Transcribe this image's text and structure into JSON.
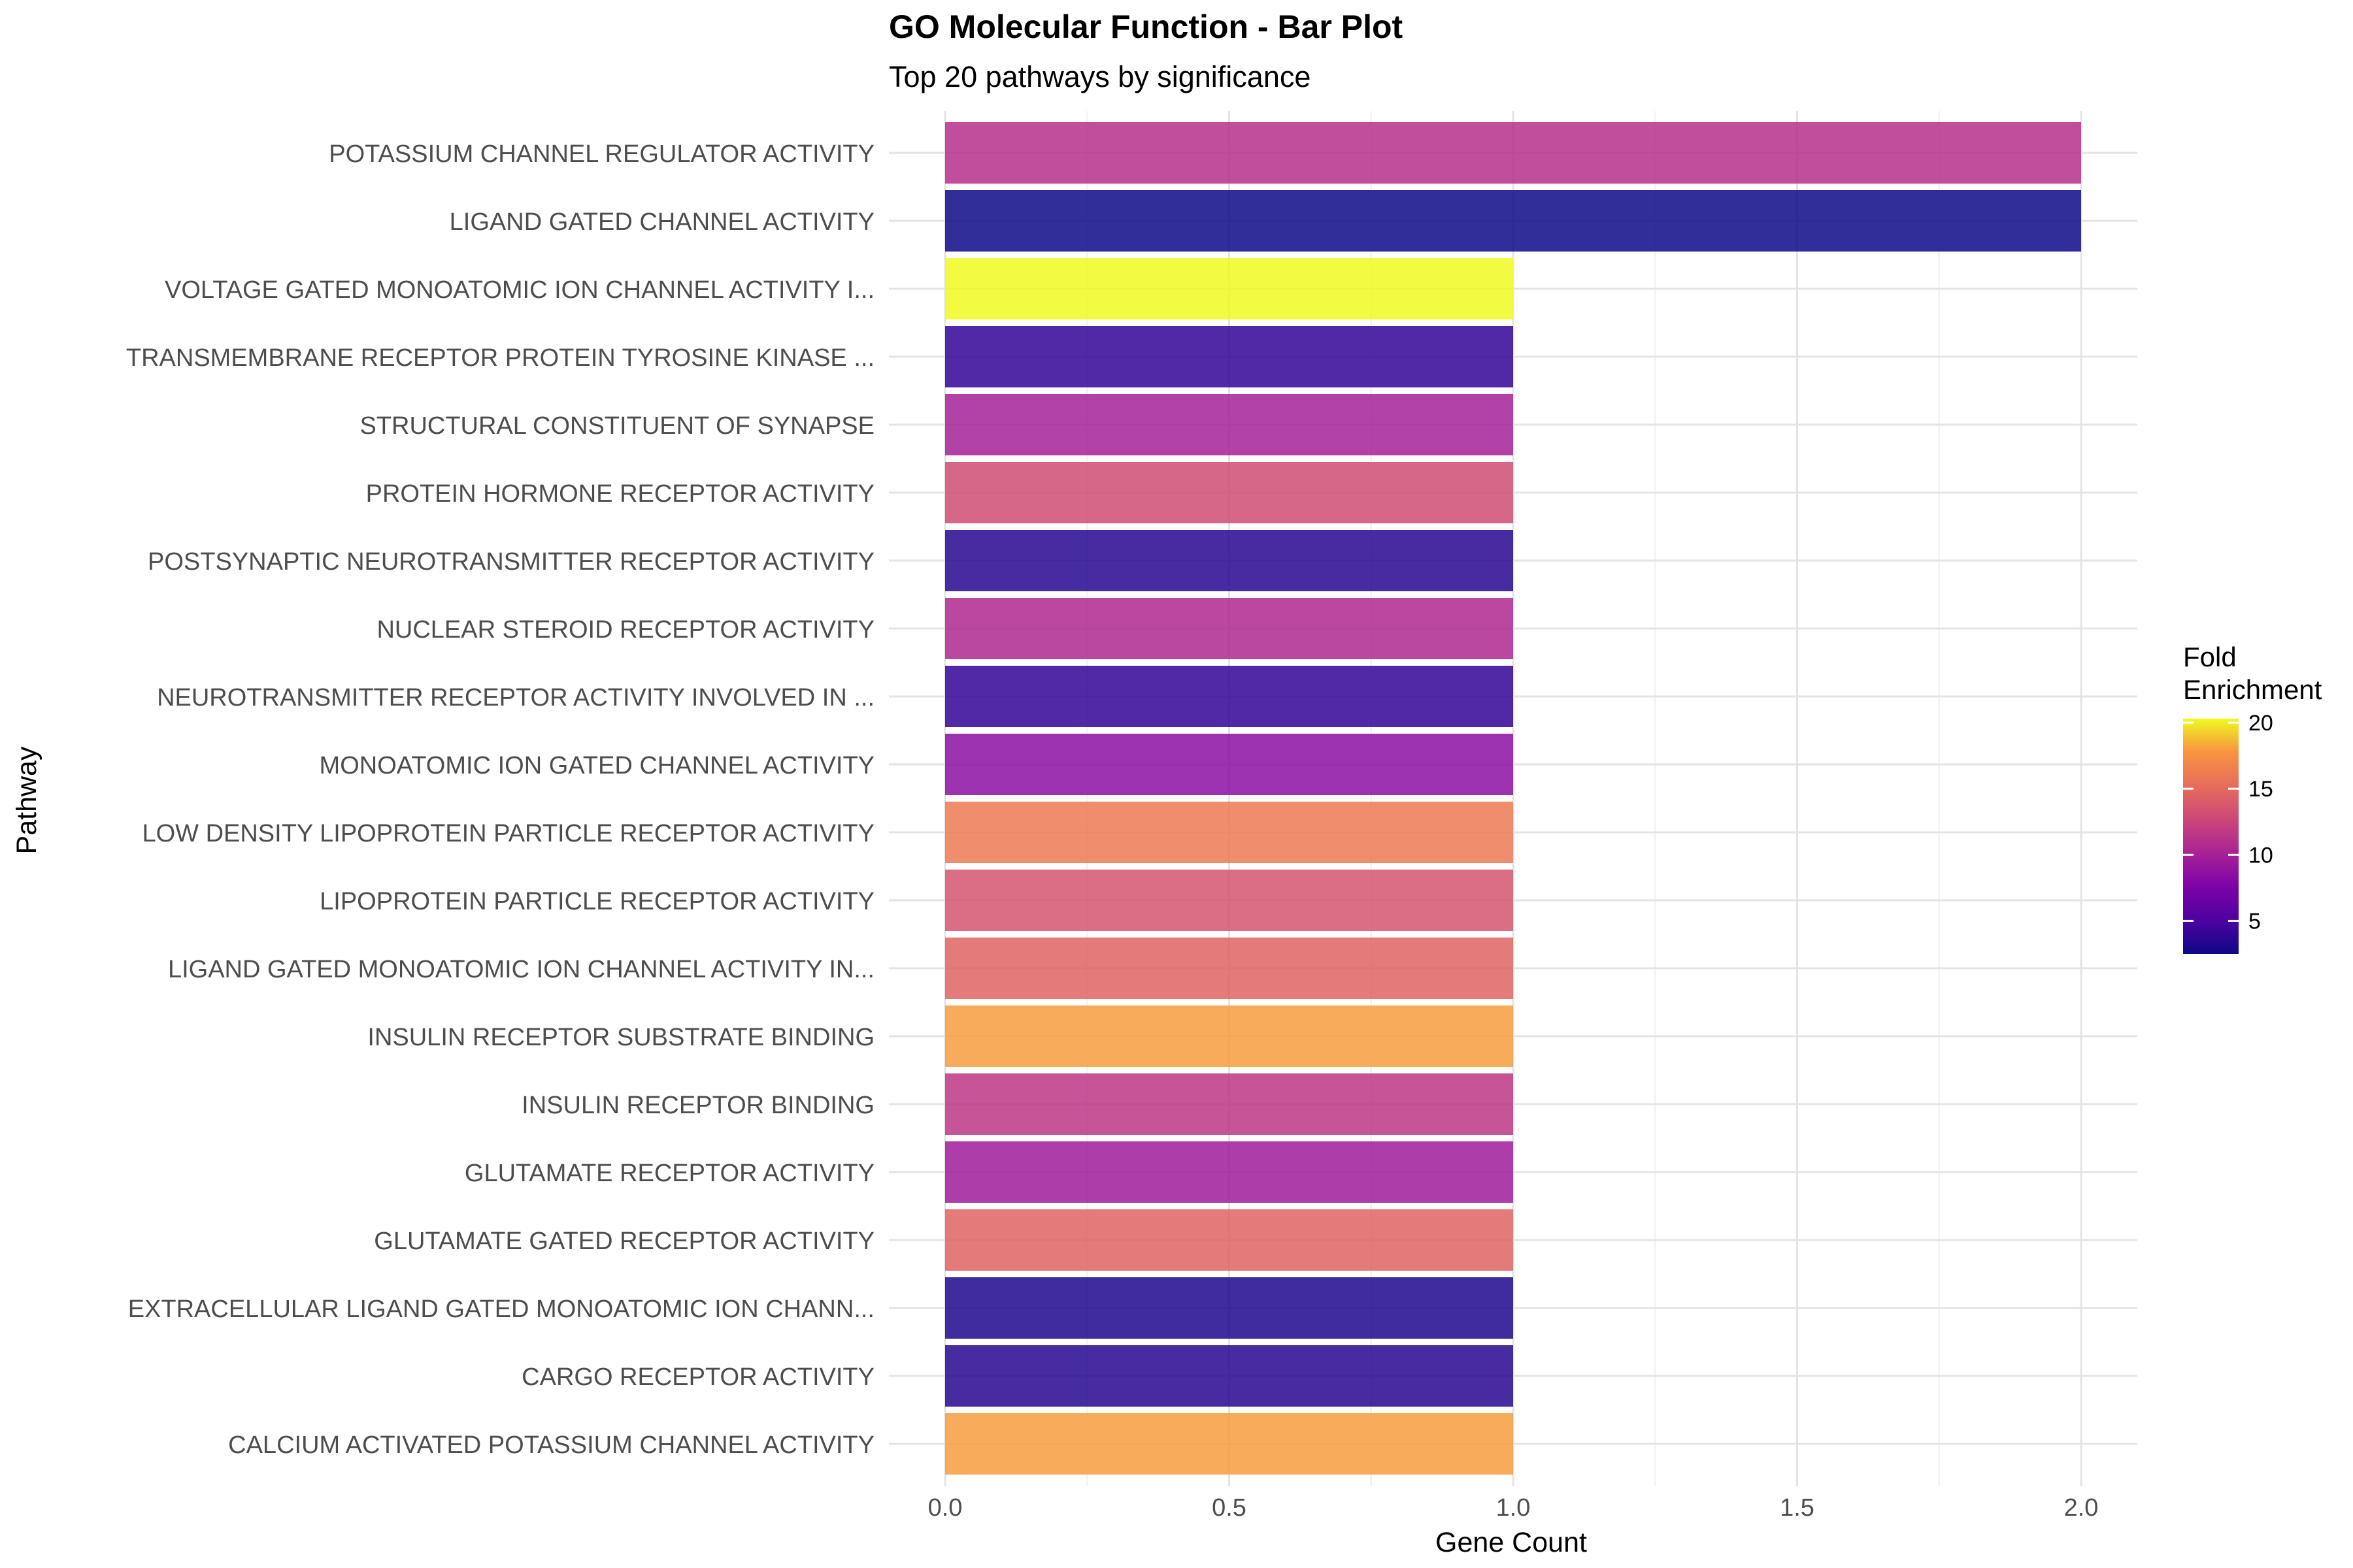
{
  "chart_data": {
    "type": "bar",
    "orientation": "horizontal",
    "title": "GO Molecular Function - Bar Plot",
    "subtitle": "Top 20 pathways by significance",
    "xlabel": "Gene Count",
    "ylabel": "Pathway",
    "xlim": [
      0,
      2.1
    ],
    "xticks": [
      "0.0",
      "0.5",
      "1.0",
      "1.5",
      "2.0"
    ],
    "xtick_values": [
      0,
      0.5,
      1.0,
      1.5,
      2.0
    ],
    "grid": true,
    "legend": {
      "title_line1": "Fold",
      "title_line2": "Enrichment",
      "placement": "right",
      "min": 2.5,
      "max": 20.3,
      "ticks": [
        "20",
        "15",
        "10",
        "5"
      ],
      "tick_values": [
        20,
        15,
        10,
        5
      ],
      "colormap": "plasma"
    },
    "categories": [
      "POTASSIUM CHANNEL REGULATOR ACTIVITY",
      "LIGAND GATED CHANNEL ACTIVITY",
      "VOLTAGE GATED MONOATOMIC ION CHANNEL ACTIVITY I...",
      "TRANSMEMBRANE RECEPTOR PROTEIN TYROSINE KINASE ...",
      "STRUCTURAL CONSTITUENT OF SYNAPSE",
      "PROTEIN HORMONE RECEPTOR ACTIVITY",
      "POSTSYNAPTIC NEUROTRANSMITTER RECEPTOR ACTIVITY",
      "NUCLEAR STEROID RECEPTOR ACTIVITY",
      "NEUROTRANSMITTER RECEPTOR ACTIVITY INVOLVED IN ...",
      "MONOATOMIC ION GATED CHANNEL ACTIVITY",
      "LOW DENSITY LIPOPROTEIN PARTICLE RECEPTOR ACTIVITY",
      "LIPOPROTEIN PARTICLE RECEPTOR ACTIVITY",
      "LIGAND GATED MONOATOMIC ION CHANNEL ACTIVITY IN...",
      "INSULIN RECEPTOR SUBSTRATE BINDING",
      "INSULIN RECEPTOR BINDING",
      "GLUTAMATE RECEPTOR ACTIVITY",
      "GLUTAMATE GATED RECEPTOR ACTIVITY",
      "EXTRACELLULAR LIGAND GATED MONOATOMIC ION CHANN...",
      "CARGO RECEPTOR ACTIVITY",
      "CALCIUM ACTIVATED POTASSIUM CHANNEL ACTIVITY"
    ],
    "values": [
      2,
      2,
      1,
      1,
      1,
      1,
      1,
      1,
      1,
      1,
      1,
      1,
      1,
      1,
      1,
      1,
      1,
      1,
      1,
      1
    ],
    "fold_enrichment": [
      11,
      2.5,
      20.3,
      4,
      10,
      13,
      3.5,
      10.5,
      4,
      8.5,
      16,
      13.5,
      14.5,
      18,
      11.5,
      9.5,
      14.5,
      3.2,
      3.5,
      18
    ]
  }
}
